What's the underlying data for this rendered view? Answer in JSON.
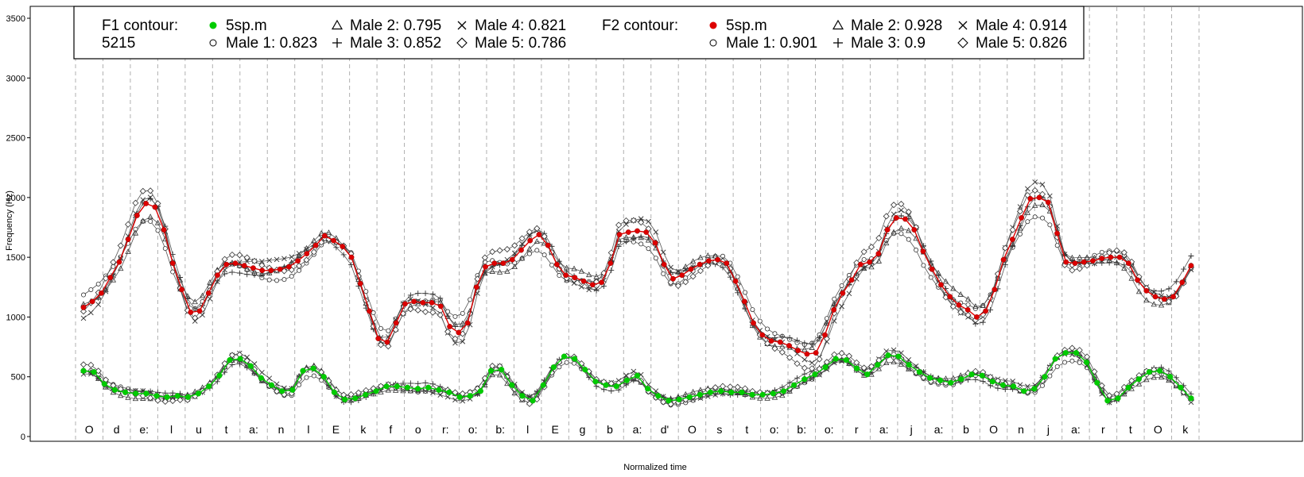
{
  "chart_data": {
    "type": "line",
    "xlabel": "Normalized time",
    "ylabel": "Frequency (Hz)",
    "ylim": [
      0,
      3600
    ],
    "yticks": [
      "0",
      "500",
      "1000",
      "1500",
      "2000",
      "2500",
      "3000",
      "3500"
    ],
    "segments": [
      "O",
      "d",
      "e:",
      "l",
      "u",
      "t",
      "a:",
      "n",
      "l",
      "E",
      "k",
      "f",
      "o",
      "r:",
      "o:",
      "b:",
      "l",
      "E",
      "g",
      "b",
      "a:",
      "d'",
      "O",
      "s",
      "t",
      "o:",
      "b:",
      "o:",
      "r",
      "a:",
      "j",
      "a:",
      "b",
      "O",
      "n",
      "j",
      "a:",
      "r",
      "t",
      "O",
      "k"
    ],
    "grid": "vertical dashed segment boundaries",
    "legend": {
      "f1_title": "F1 contour:",
      "f1_number": "5215",
      "f1_entries": [
        "5sp.m",
        "Male 1: 0.823",
        "Male 2: 0.795",
        "Male 3: 0.852",
        "Male 4: 0.821",
        "Male 5: 0.786"
      ],
      "f2_title": "F2 contour:",
      "f2_entries": [
        "5sp.m",
        "Male 1: 0.901",
        "Male 2: 0.928",
        "Male 3: 0.9",
        "Male 4: 0.914",
        "Male 5: 0.826"
      ]
    },
    "colors": {
      "f1_mean": "#00cc00",
      "f2_mean": "#dd0000",
      "speakers": "#555555"
    },
    "f1_mean": [
      550,
      540,
      440,
      390,
      370,
      360,
      360,
      340,
      330,
      340,
      330,
      360,
      420,
      510,
      640,
      650,
      590,
      490,
      430,
      380,
      390,
      550,
      570,
      500,
      370,
      310,
      320,
      350,
      380,
      420,
      420,
      410,
      400,
      410,
      390,
      370,
      330,
      340,
      380,
      550,
      560,
      430,
      340,
      300,
      430,
      580,
      670,
      650,
      560,
      460,
      430,
      420,
      470,
      510,
      400,
      340,
      300,
      310,
      330,
      350,
      370,
      380,
      370,
      370,
      350,
      350,
      360,
      380,
      430,
      480,
      520,
      580,
      650,
      640,
      570,
      520,
      600,
      680,
      670,
      600,
      540,
      490,
      470,
      450,
      480,
      520,
      510,
      460,
      430,
      420,
      380,
      400,
      500,
      650,
      700,
      700,
      620,
      450,
      300,
      320,
      410,
      480,
      540,
      550,
      500,
      410,
      320
    ],
    "f2_mean": [
      1080,
      1130,
      1200,
      1330,
      1460,
      1650,
      1850,
      1950,
      1920,
      1730,
      1450,
      1230,
      1040,
      1050,
      1200,
      1350,
      1440,
      1450,
      1430,
      1410,
      1390,
      1390,
      1400,
      1420,
      1470,
      1530,
      1600,
      1680,
      1640,
      1590,
      1500,
      1280,
      1050,
      820,
      790,
      950,
      1110,
      1130,
      1120,
      1120,
      1090,
      920,
      870,
      950,
      1250,
      1420,
      1450,
      1450,
      1480,
      1560,
      1640,
      1690,
      1600,
      1440,
      1350,
      1330,
      1300,
      1270,
      1290,
      1450,
      1690,
      1710,
      1720,
      1710,
      1620,
      1440,
      1320,
      1350,
      1400,
      1440,
      1470,
      1480,
      1450,
      1300,
      1130,
      950,
      850,
      800,
      790,
      760,
      720,
      690,
      700,
      850,
      1060,
      1200,
      1310,
      1440,
      1460,
      1530,
      1730,
      1830,
      1820,
      1730,
      1550,
      1400,
      1270,
      1170,
      1100,
      1060,
      1000,
      1050,
      1230,
      1480,
      1650,
      1830,
      1990,
      2000,
      1960,
      1700,
      1460,
      1450,
      1460,
      1470,
      1490,
      1500,
      1500,
      1450,
      1310,
      1220,
      1170,
      1150,
      1170,
      1290,
      1430
    ]
  }
}
